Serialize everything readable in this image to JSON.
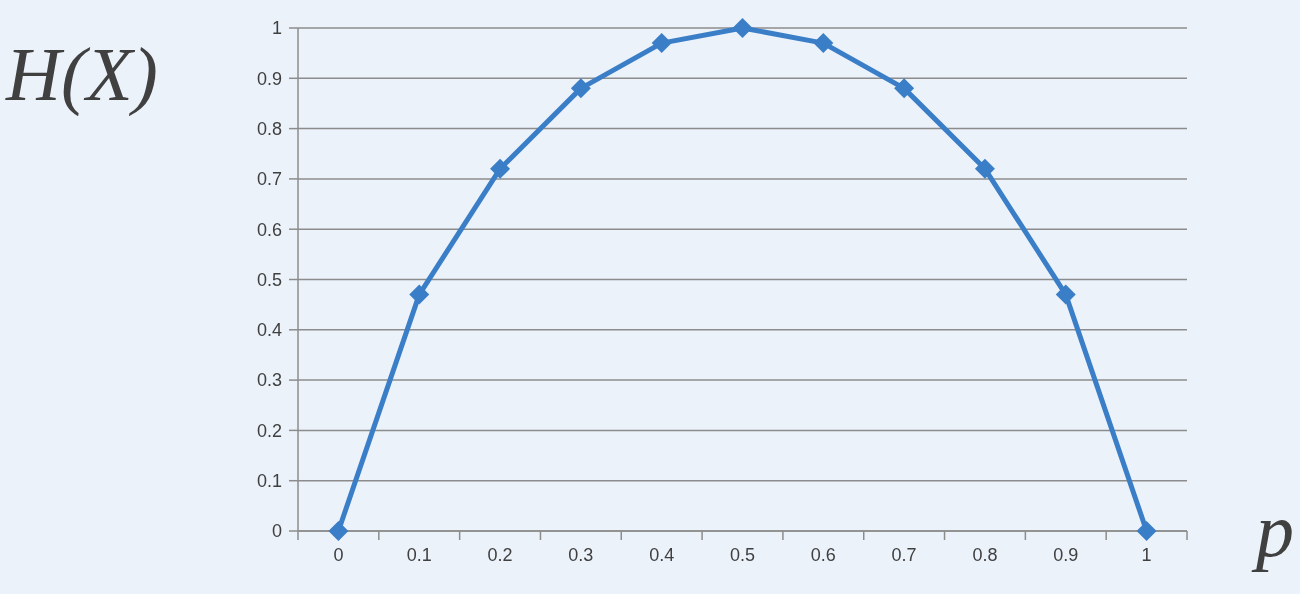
{
  "chart_data": {
    "type": "line",
    "xlabel": "p",
    "ylabel": "H(X)",
    "categories": [
      "0",
      "0.1",
      "0.2",
      "0.3",
      "0.4",
      "0.5",
      "0.6",
      "0.7",
      "0.8",
      "0.9",
      "1"
    ],
    "series": [
      {
        "color": "#3b7ec8",
        "values": [
          0,
          0.47,
          0.72,
          0.88,
          0.97,
          1,
          0.97,
          0.88,
          0.72,
          0.47,
          0
        ]
      }
    ],
    "ylim": [
      0,
      1
    ],
    "yticks": [
      0,
      0.1,
      0.2,
      0.3,
      0.4,
      0.5,
      0.6,
      0.7,
      0.8,
      0.9,
      1
    ],
    "grid": "y",
    "marker": "diamond",
    "line_style": "solid"
  }
}
